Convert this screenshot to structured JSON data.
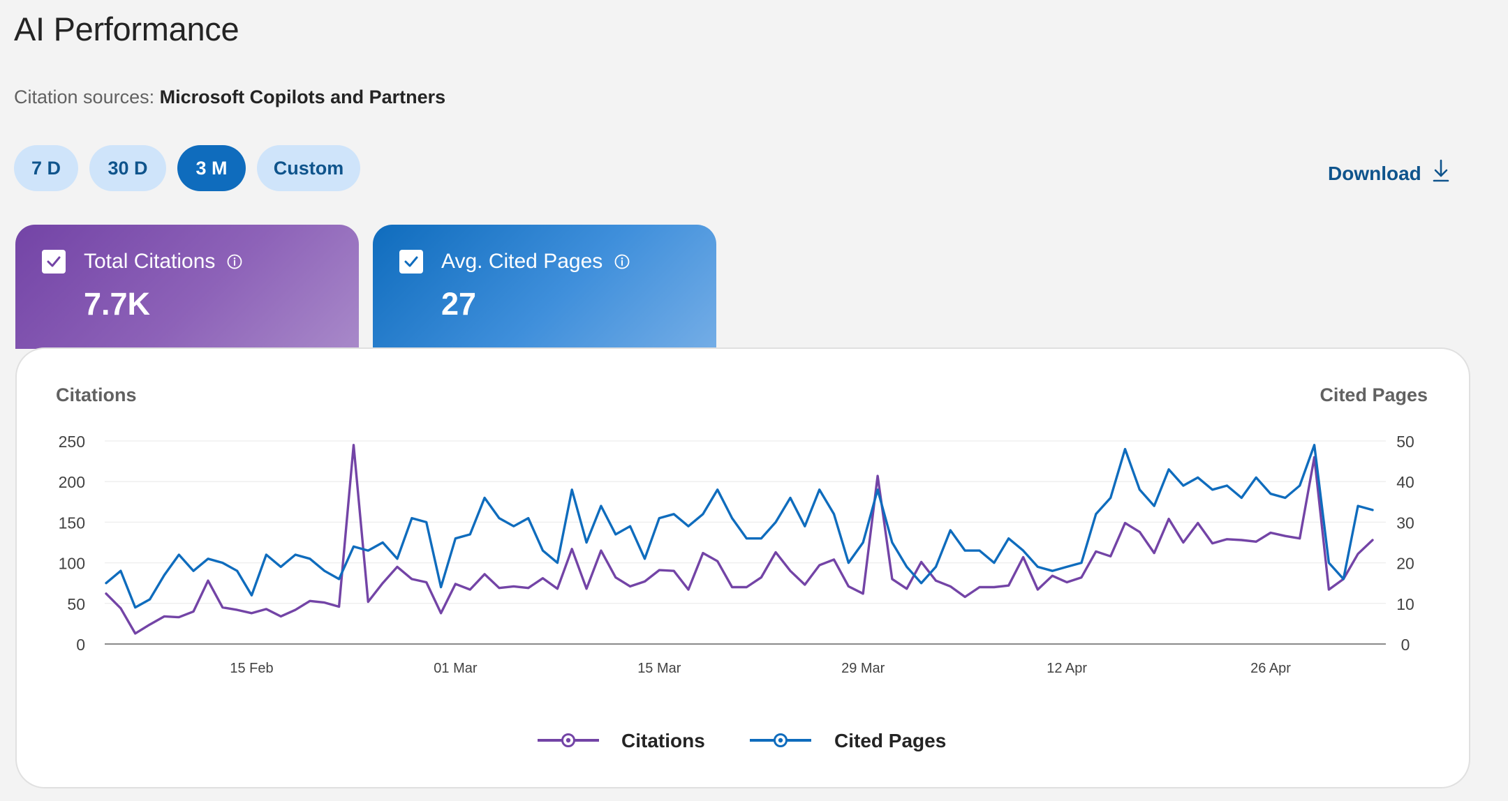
{
  "page": {
    "title": "AI Performance"
  },
  "sources": {
    "label": "Citation sources:",
    "value": "Microsoft Copilots and Partners"
  },
  "ranges": [
    {
      "label": "7 D",
      "active": false
    },
    {
      "label": "30 D",
      "active": false
    },
    {
      "label": "3 M",
      "active": true
    },
    {
      "label": "Custom",
      "active": false
    }
  ],
  "download": {
    "label": "Download",
    "icon": "download-icon"
  },
  "cards": [
    {
      "label": "Total Citations",
      "value": "7.7K",
      "checked": true,
      "color": "#7344a6"
    },
    {
      "label": "Avg. Cited Pages",
      "value": "27",
      "checked": true,
      "color": "#0f6cbd"
    }
  ],
  "chart_data": {
    "type": "line",
    "ylabel_left": "Citations",
    "ylabel_right": "Cited Pages",
    "ylim_left": [
      0,
      250
    ],
    "ylim_right": [
      0,
      50
    ],
    "yticks_left": [
      "0",
      "50",
      "100",
      "150",
      "200",
      "250"
    ],
    "yticks_right": [
      "0",
      "10",
      "20",
      "30",
      "40",
      "50"
    ],
    "x_tick_labels": [
      "15 Feb",
      "01 Mar",
      "15 Mar",
      "29 Mar",
      "12 Apr",
      "26 Apr"
    ],
    "x_tick_index": [
      10,
      24,
      38,
      52,
      66,
      80
    ],
    "grid": true,
    "legend_position": "bottom",
    "series": [
      {
        "name": "Citations",
        "axis": "left",
        "color": "#7344a6",
        "values": [
          62,
          44,
          13,
          24,
          34,
          33,
          40,
          78,
          45,
          42,
          38,
          43,
          34,
          42,
          53,
          51,
          46,
          245,
          52,
          75,
          95,
          80,
          76,
          38,
          74,
          67,
          86,
          69,
          71,
          69,
          81,
          68,
          117,
          68,
          115,
          82,
          71,
          77,
          91,
          90,
          67,
          112,
          102,
          70,
          70,
          82,
          113,
          90,
          73,
          97,
          104,
          71,
          62,
          207,
          80,
          68,
          101,
          78,
          71,
          58,
          70,
          70,
          72,
          107,
          67,
          84,
          76,
          82,
          114,
          108,
          149,
          138,
          112,
          154,
          125,
          149,
          124,
          129,
          128,
          126,
          137,
          133,
          130,
          230,
          67,
          80,
          111,
          128
        ]
      },
      {
        "name": "Cited Pages",
        "axis": "right",
        "color": "#0f6cbd",
        "values": [
          15,
          18,
          9,
          11,
          17,
          22,
          18,
          21,
          20,
          18,
          12,
          22,
          19,
          22,
          21,
          18,
          16,
          24,
          23,
          25,
          21,
          31,
          30,
          14,
          26,
          27,
          36,
          31,
          29,
          31,
          23,
          20,
          38,
          25,
          34,
          27,
          29,
          21,
          31,
          32,
          29,
          32,
          38,
          31,
          26,
          26,
          30,
          36,
          29,
          38,
          32,
          20,
          25,
          38,
          25,
          19,
          15,
          19,
          28,
          23,
          23,
          20,
          26,
          23,
          19,
          18,
          19,
          20,
          32,
          36,
          48,
          38,
          34,
          43,
          39,
          41,
          38,
          39,
          36,
          41,
          37,
          36,
          39,
          49,
          20,
          16,
          34,
          33
        ]
      }
    ]
  }
}
